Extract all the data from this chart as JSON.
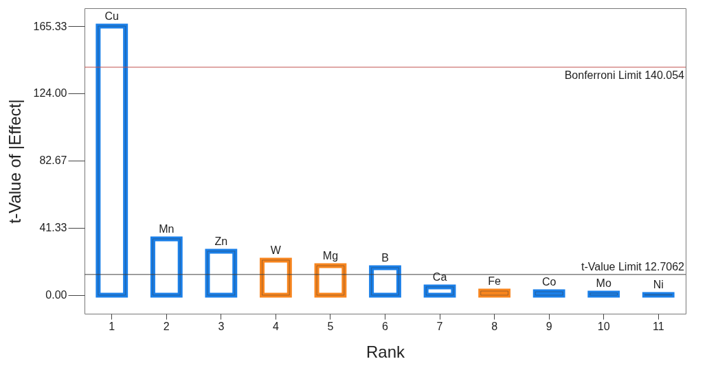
{
  "chart_data": {
    "type": "bar",
    "xlabel": "Rank",
    "ylabel": "t-Value of |Effect|",
    "categories": [
      "1",
      "2",
      "3",
      "4",
      "5",
      "6",
      "7",
      "8",
      "9",
      "10",
      "11"
    ],
    "values": [
      165.33,
      34.6,
      27.0,
      21.5,
      18.1,
      16.9,
      5.1,
      2.5,
      2.1,
      1.3,
      0.4
    ],
    "colors": [
      "#1a7fe8",
      "#1a7fe8",
      "#1a7fe8",
      "#f7851e",
      "#f7851e",
      "#1a7fe8",
      "#1a7fe8",
      "#f7851e",
      "#1a7fe8",
      "#1a7fe8",
      "#1a7fe8"
    ],
    "ylim": [
      -11.4,
      176.3
    ],
    "yticks": [
      {
        "value": 0,
        "label": "0.00"
      },
      41.33,
      {
        "value": 124,
        "label": "124.00"
      },
      82.67,
      165.33
    ],
    "grid": false,
    "legend": false,
    "ref_lines": [
      {
        "axis": "y",
        "value": 140.054,
        "label": "Bonferroni Limit 140.054",
        "color": "#c0504d"
      },
      {
        "axis": "y",
        "value": 12.7062,
        "label": "t-Value Limit 12.7062",
        "color": "#404040"
      }
    ],
    "annotations": [
      {
        "text": "Cu",
        "x": "1",
        "y": 165.33
      },
      {
        "text": "Mn",
        "x": "2",
        "y": 34.6
      },
      {
        "text": "Zn",
        "x": "3",
        "y": 27.0
      },
      {
        "text": "W",
        "x": "4",
        "y": 21.5
      },
      {
        "text": "Mg",
        "x": "5",
        "y": 18.1
      },
      {
        "text": "B",
        "x": "6",
        "y": 16.9
      },
      {
        "text": "Ca",
        "x": "7",
        "y": 5.1
      },
      {
        "text": "Fe",
        "x": "8",
        "y": 2.5
      },
      {
        "text": "Co",
        "x": "9",
        "y": 2.1
      },
      {
        "text": "Mo",
        "x": "10",
        "y": 1.3
      },
      {
        "text": "Ni",
        "x": "11",
        "y": 0.4
      }
    ]
  }
}
